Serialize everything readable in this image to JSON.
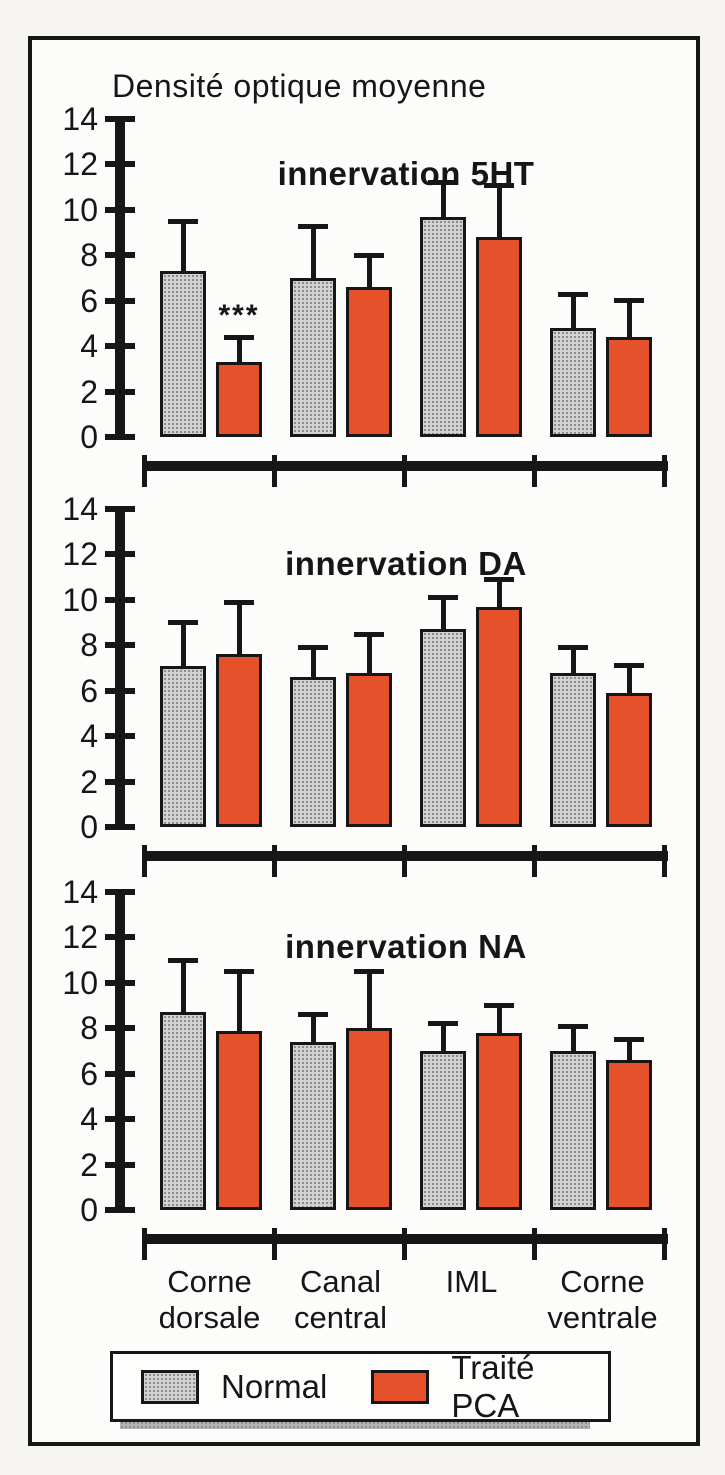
{
  "figure": {
    "title": "Densité optique moyenne"
  },
  "categories": [
    "Corne dorsale",
    "Canal central",
    "IML",
    "Corne ventrale"
  ],
  "legend": {
    "position": "bottom",
    "items": [
      {
        "label": "Normal",
        "color": "#d2d2d2",
        "pattern": "halftone-dots"
      },
      {
        "label": "Traité PCA",
        "color": "#e5512a",
        "pattern": "solid"
      }
    ]
  },
  "colors": {
    "axis": "#161616",
    "frame": "#161616",
    "background": "#fcfcfa"
  },
  "chart_data": [
    {
      "type": "bar",
      "title": "innervation 5HT",
      "categories": [
        "Corne dorsale",
        "Canal central",
        "IML",
        "Corne ventrale"
      ],
      "ylim": [
        0,
        14
      ],
      "yticks": [
        0,
        2,
        4,
        6,
        8,
        10,
        12,
        14
      ],
      "grid": false,
      "error_bars": "upper",
      "series": [
        {
          "name": "Normal",
          "values": [
            7.3,
            7.0,
            9.7,
            4.8
          ],
          "errors": [
            2.3,
            2.4,
            1.6,
            1.6
          ]
        },
        {
          "name": "Traité PCA",
          "values": [
            3.3,
            6.6,
            8.8,
            4.4
          ],
          "errors": [
            1.2,
            1.5,
            2.4,
            1.7
          ]
        }
      ],
      "annotations": [
        {
          "series": 1,
          "category": 0,
          "text": "***"
        }
      ]
    },
    {
      "type": "bar",
      "title": "innervation DA",
      "categories": [
        "Corne dorsale",
        "Canal central",
        "IML",
        "Corne ventrale"
      ],
      "ylim": [
        0,
        14
      ],
      "yticks": [
        0,
        2,
        4,
        6,
        8,
        10,
        12,
        14
      ],
      "grid": false,
      "error_bars": "upper",
      "series": [
        {
          "name": "Normal",
          "values": [
            7.1,
            6.6,
            8.7,
            6.8
          ],
          "errors": [
            2.0,
            1.4,
            1.5,
            1.2
          ]
        },
        {
          "name": "Traité PCA",
          "values": [
            7.6,
            6.8,
            9.7,
            5.9
          ],
          "errors": [
            2.4,
            1.8,
            1.3,
            1.3
          ]
        }
      ],
      "annotations": []
    },
    {
      "type": "bar",
      "title": "innervation NA",
      "categories": [
        "Corne dorsale",
        "Canal central",
        "IML",
        "Corne ventrale"
      ],
      "ylim": [
        0,
        14
      ],
      "yticks": [
        0,
        2,
        4,
        6,
        8,
        10,
        12,
        14
      ],
      "grid": false,
      "error_bars": "upper",
      "series": [
        {
          "name": "Normal",
          "values": [
            8.7,
            7.4,
            7.0,
            7.0
          ],
          "errors": [
            2.4,
            1.3,
            1.3,
            1.2
          ]
        },
        {
          "name": "Traité PCA",
          "values": [
            7.9,
            8.0,
            7.8,
            6.6
          ],
          "errors": [
            2.7,
            2.6,
            1.3,
            1.0
          ]
        }
      ],
      "annotations": []
    }
  ]
}
